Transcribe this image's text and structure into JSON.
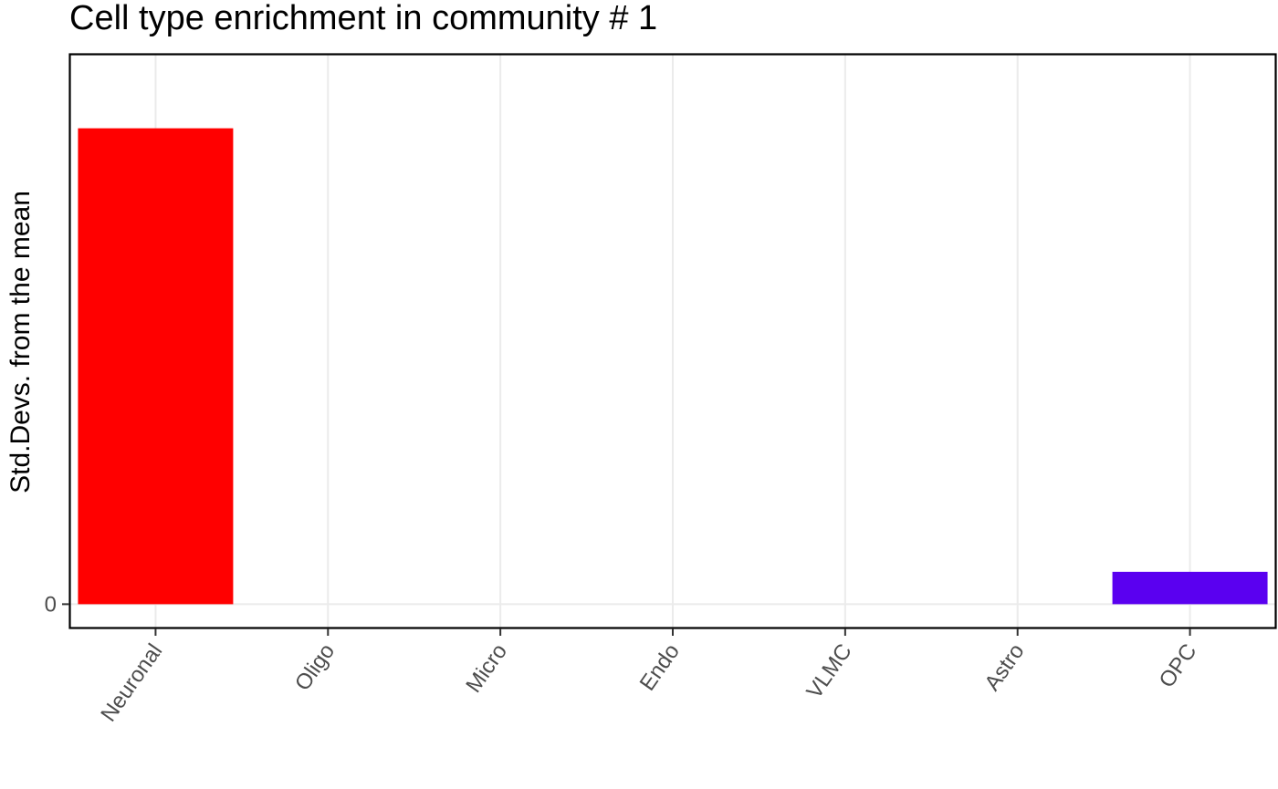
{
  "chart_data": {
    "type": "bar",
    "title": "Cell type enrichment in community # 1",
    "xlabel": "",
    "ylabel": "Std.Devs. from the mean",
    "categories": [
      "Neuronal",
      "Oligo",
      "Micro",
      "Endo",
      "VLMC",
      "Astro",
      "OPC"
    ],
    "values": [
      14.7,
      0,
      0,
      0,
      0,
      0,
      1.0
    ],
    "colors": [
      "#ff0000",
      null,
      null,
      null,
      null,
      null,
      "#5a00f0"
    ],
    "y_ticks": [
      0
    ],
    "ylim": [
      -0.75,
      17
    ],
    "grid": true,
    "legend": "none"
  }
}
